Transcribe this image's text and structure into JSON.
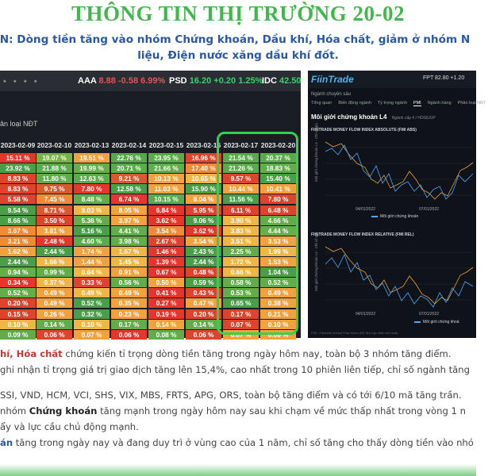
{
  "title": "THÔNG TIN THỊ TRƯỜNG 20-02",
  "subtitle": {
    "line1": "N: Dòng tiền tăng vào nhóm Chứng khoán, Dầu khí, Hóa chất, giảm ở nhóm N",
    "line2": "liệu, Điện nước xăng dầu khí đốt."
  },
  "ticker": [
    {
      "sym": "AAA",
      "price": "8.88",
      "chg": "-0.58",
      "pct": "6.99%",
      "dir": "down"
    },
    {
      "sym": "PSD",
      "price": "16.20",
      "chg": "+0.20",
      "pct": "1.25%",
      "dir": "up"
    },
    {
      "sym": "IDC",
      "price": "42.50",
      "chg": "",
      "pct": "",
      "dir": "up"
    }
  ],
  "heatmap": {
    "label": "ân loại NĐT",
    "dates": [
      "2023-02-09",
      "2023-02-10",
      "2023-02-13",
      "2023-02-14",
      "2023-02-15",
      "2023-02-16",
      "2023-02-17",
      "2023-02-20"
    ],
    "rows": [
      [
        "15.11 %",
        "19.07 %",
        "19.51 %",
        "22.76 %",
        "23.95 %",
        "16.96 %",
        "21.54 %",
        "20.37 %"
      ],
      [
        "23.92 %",
        "21.88 %",
        "19.99 %",
        "20.71 %",
        "21.66 %",
        "17.40 %",
        "21.26 %",
        "18.83 %"
      ],
      [
        "8.83 %",
        "11.80 %",
        "12.63 %",
        "9.21 %",
        "10.13 %",
        "10.65 %",
        "9.57 %",
        "15.40 %"
      ],
      [
        "8.83 %",
        "9.75 %",
        "7.80 %",
        "12.58 %",
        "11.03 %",
        "15.90 %",
        "10.44 %",
        "10.41 %"
      ],
      [
        "5.58 %",
        "7.45 %",
        "8.48 %",
        "6.74 %",
        "10.15 %",
        "8.04 %",
        "11.56 %",
        "7.80 %"
      ],
      [
        "9.54 %",
        "8.71 %",
        "9.03 %",
        "8.05 %",
        "6.84 %",
        "5.95 %",
        "6.11 %",
        "6.48 %"
      ],
      [
        "8.66 %",
        "3.50 %",
        "5.36 %",
        "3.97 %",
        "3.62 %",
        "9.06 %",
        "3.90 %",
        "4.66 %"
      ],
      [
        "3.67 %",
        "3.81 %",
        "5.16 %",
        "4.41 %",
        "3.54 %",
        "3.62 %",
        "3.83 %",
        "4.44 %"
      ],
      [
        "3.21 %",
        "2.48 %",
        "4.60 %",
        "3.98 %",
        "2.67 %",
        "3.54 %",
        "3.51 %",
        "3.53 %"
      ],
      [
        "1.62 %",
        "2.44 %",
        "1.74 %",
        "1.67 %",
        "1.46 %",
        "2.43 %",
        "2.25 %",
        "1.99 %"
      ],
      [
        "2.44 %",
        "1.66 %",
        "1.44 %",
        "1.45 %",
        "1.39 %",
        "2.44 %",
        "1.72 %",
        "1.53 %"
      ],
      [
        "0.94 %",
        "0.99 %",
        "0.64 %",
        "0.91 %",
        "0.67 %",
        "0.48 %",
        "0.66 %",
        "1.04 %"
      ],
      [
        "0.34 %",
        "0.37 %",
        "0.33 %",
        "0.56 %",
        "0.50 %",
        "0.59 %",
        "0.58 %",
        "0.52 %"
      ],
      [
        "0.52 %",
        "0.49 %",
        "0.49 %",
        "0.49 %",
        "0.41 %",
        "0.43 %",
        "0.53 %",
        "0.49 %"
      ],
      [
        "0.20 %",
        "0.49 %",
        "0.52 %",
        "0.35 %",
        "0.27 %",
        "0.47 %",
        "0.65 %",
        "0.38 %"
      ],
      [
        "0.15 %",
        "0.26 %",
        "0.32 %",
        "0.23 %",
        "0.19 %",
        "0.20 %",
        "0.17 %",
        "0.21 %"
      ],
      [
        "0.10 %",
        "0.14 %",
        "0.10 %",
        "0.17 %",
        "0.14 %",
        "0.14 %",
        "0.07 %",
        "0.10 %"
      ],
      [
        "0.09 %",
        "0.06 %",
        "0.07 %",
        "0.06 %",
        "0.08 %",
        "0.06 %",
        "0.07 %",
        "0.08 %"
      ]
    ],
    "colors": [
      [
        "#e8352b",
        "#79b245",
        "#f2a13c",
        "#58a84a",
        "#5daa4a",
        "#e0432b",
        "#5aab4b",
        "#5aab4b"
      ],
      [
        "#4a9e48",
        "#5aab4b",
        "#65ae49",
        "#5aab4b",
        "#62ad4a",
        "#f08a35",
        "#5aab4b",
        "#62ad4a"
      ],
      [
        "#e0432b",
        "#62ad4a",
        "#5aab4b",
        "#d95a2c",
        "#f2a13c",
        "#f0b542",
        "#e0432b",
        "#4a9e48"
      ],
      [
        "#e0432b",
        "#d95a2c",
        "#e8352b",
        "#4a9e48",
        "#f2a13c",
        "#4a9e48",
        "#f2a13c",
        "#f2a13c"
      ],
      [
        "#e0432b",
        "#f08a35",
        "#62ad4a",
        "#e8352b",
        "#5aab4b",
        "#f2a13c",
        "#4a9e48",
        "#e0432b"
      ],
      [
        "#4a9e48",
        "#d95a2c",
        "#f0b542",
        "#f2a13c",
        "#e8352b",
        "#e0432b",
        "#e0432b",
        "#e0432b"
      ],
      [
        "#4a9e48",
        "#e0432b",
        "#62ad4a",
        "#f2a13c",
        "#e8352b",
        "#4a9e48",
        "#f0b542",
        "#62ad4a"
      ],
      [
        "#f08a35",
        "#f2a13c",
        "#4a9e48",
        "#62ad4a",
        "#f08a35",
        "#e8352b",
        "#f0b542",
        "#65ae49"
      ],
      [
        "#f08a35",
        "#e8352b",
        "#5aab4b",
        "#62ad4a",
        "#e0432b",
        "#f2a13c",
        "#f0b542",
        "#f2a13c"
      ],
      [
        "#f2a13c",
        "#4a9e48",
        "#f2a13c",
        "#f0b542",
        "#e8352b",
        "#4a9e48",
        "#62ad4a",
        "#f0b542"
      ],
      [
        "#4a9e48",
        "#f0b542",
        "#f2a13c",
        "#f0b542",
        "#e8352b",
        "#4a9e48",
        "#f0b542",
        "#f2a13c"
      ],
      [
        "#65ae49",
        "#62ad4a",
        "#f0b542",
        "#f2a13c",
        "#e8352b",
        "#e0432b",
        "#f0b542",
        "#4a9e48"
      ],
      [
        "#e8352b",
        "#f0b542",
        "#e0432b",
        "#62ad4a",
        "#f2a13c",
        "#4a9e48",
        "#62ad4a",
        "#62ad4a"
      ],
      [
        "#62ad4a",
        "#f2a13c",
        "#f0b542",
        "#f2a13c",
        "#e8352b",
        "#e0432b",
        "#62ad4a",
        "#f2a13c"
      ],
      [
        "#e0432b",
        "#f2a13c",
        "#4a9e48",
        "#f2a13c",
        "#e8352b",
        "#f2a13c",
        "#4a9e48",
        "#f2a13c"
      ],
      [
        "#e0432b",
        "#f2a13c",
        "#4a9e48",
        "#f2a13c",
        "#e8352b",
        "#e0432b",
        "#e0432b",
        "#f2a13c"
      ],
      [
        "#f0b542",
        "#62ad4a",
        "#f0b542",
        "#62ad4a",
        "#f2a13c",
        "#62ad4a",
        "#e0432b",
        "#f2a13c"
      ],
      [
        "#62ad4a",
        "#e0432b",
        "#f2a13c",
        "#e8352b",
        "#62ad4a",
        "#e0432b",
        "#f2a13c",
        "#f2a13c"
      ]
    ]
  },
  "fiin": {
    "logo": "FiinTrade",
    "fpt": "FPT 82.80 +1.20",
    "nav": "Ngành chuyên sâu",
    "tabs": [
      "Tổng quan",
      "Biến động ngành",
      "Tỷ trọng ngành",
      "PMI",
      "Ngành hàng",
      "Phân loại NĐT"
    ],
    "active_tab": "PMI",
    "section": "Môi giới chứng khoán L4",
    "section_sub": "Ngành cấp 4 / HOSE/UP",
    "chart1": {
      "title": "FIINTRADE MONEY FLOW INDEX ABSOLUTE (FMI ABS)",
      "ylabel": "Môi giới chứng khoán L4 - Chỉ số giá",
      "dates": [
        "04/01/2022",
        "07/01/2022"
      ],
      "legend": "Môi giới chứng khoán"
    },
    "chart2": {
      "title": "FIINTRADE MONEY FLOW INDEX RELATIVE (FMI REL)",
      "ylabel": "Môi giới chứng khoán L4 - Chỉ số giá",
      "dates": [
        "04/01/2022",
        "07/01/2022"
      ],
      "legend": "Môi giới chứng khoá"
    },
    "footer": "FMI - Fiintrade Money Flow Index (Dữ liệu cập nhật mới nhất)"
  },
  "body": {
    "l1_bold": "hí, Hóa chất",
    "l1_rest": " chứng kiến tỉ trọng dòng tiền tăng trong ngày hôm nay, toàn bộ 3 nhóm tăng điểm.",
    "l2": " ghi nhận tỉ trọng giá trị giao dịch tăng lên 15,4%, cao nhất trong 10 phiên liên tiếp, chỉ số ngành tăng",
    "l3": "SSI, VND, HCM, VCI, SHS, VIX, MBS, FRTS, APG, ORS, toàn bộ tăng điểm và có tới 6/10 mã tăng trần.",
    "l4_a": " nhóm ",
    "l4_bold": "Chứng khoán",
    "l4_rest": " tăng mạnh trong ngày hôm nay sau khi chạm về mức thấp nhất trong vòng 1 n",
    "l5": "ẩy và lực cầu chủ động mạnh.",
    "l6_bold": "án",
    "l6_rest": " tăng trong ngày nay và đang duy trì ở vùng cao của 1 năm, chỉ số tăng cho thấy dòng tiền vào nhó"
  }
}
